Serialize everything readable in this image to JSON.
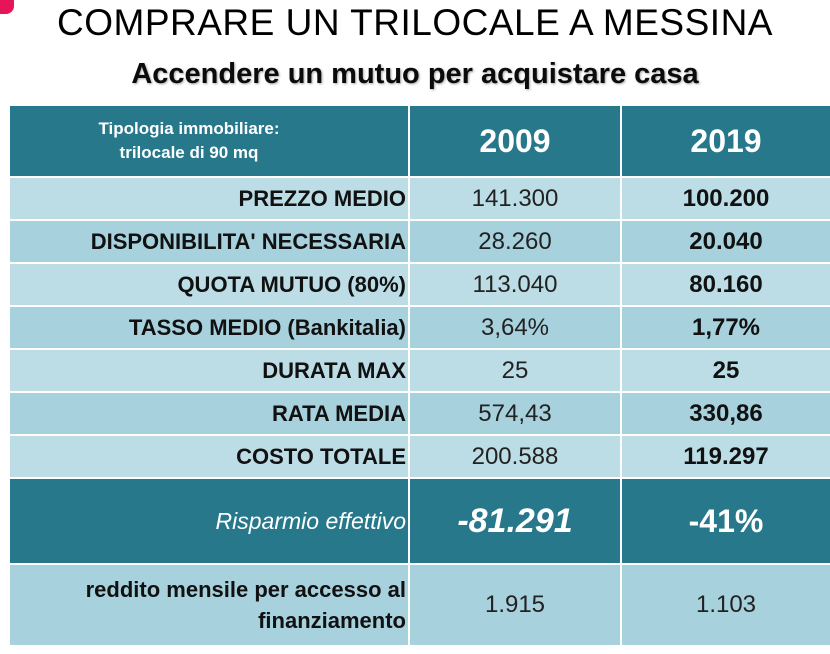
{
  "title": "COMPRARE UN TRILOCALE A MESSINA",
  "subtitle": "Accendere un mutuo per acquistare casa",
  "header": {
    "label_line1": "Tipologia immobiliare:",
    "label_line2": "trilocale di 90 mq",
    "year1": "2009",
    "year2": "2019"
  },
  "rows": [
    {
      "label": "PREZZO MEDIO",
      "v2009": "141.300",
      "v2019": "100.200"
    },
    {
      "label": "DISPONIBILITA' NECESSARIA",
      "v2009": "28.260",
      "v2019": "20.040"
    },
    {
      "label": "QUOTA MUTUO (80%)",
      "v2009": "113.040",
      "v2019": "80.160"
    },
    {
      "label": "TASSO MEDIO (Bankitalia)",
      "v2009": "3,64%",
      "v2019": "1,77%"
    },
    {
      "label": "DURATA MAX",
      "v2009": "25",
      "v2019": "25"
    },
    {
      "label": "RATA MEDIA",
      "v2009": "574,43",
      "v2019": "330,86"
    },
    {
      "label": "COSTO TOTALE",
      "v2009": "200.588",
      "v2019": "119.297"
    }
  ],
  "savings": {
    "label": "Risparmio effettivo",
    "v2009": "-81.291",
    "v2019": "-41%"
  },
  "income": {
    "label_line1": "reddito mensile per accesso al",
    "label_line2": "finanziamento",
    "v2009": "1.915",
    "v2019": "1.103"
  },
  "colors": {
    "header_bg": "#28788c",
    "row_light": "#bcdde6",
    "row_dark": "#a6d1dd",
    "accent": "#e8145a"
  }
}
